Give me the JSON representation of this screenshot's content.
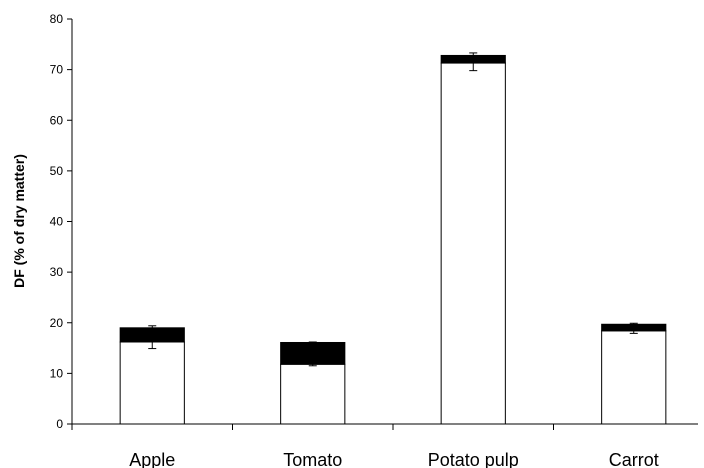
{
  "chart_data": {
    "type": "bar",
    "stacked": true,
    "title": "",
    "xlabel": "",
    "ylabel": "DF (% of dry matter)",
    "ylim": [
      0,
      80
    ],
    "yticks": [
      0,
      10,
      20,
      30,
      40,
      50,
      60,
      70,
      80
    ],
    "grid": false,
    "categories": [
      "Apple",
      "Tomato",
      "Potato pulp",
      "Carrot"
    ],
    "series": [
      {
        "values": [
          16.2,
          11.8,
          71.3,
          18.4
        ],
        "error": [
          1.3,
          0.3,
          1.5,
          0.5
        ],
        "color": "#ffffff"
      },
      {
        "values": [
          2.8,
          4.3,
          1.5,
          1.3
        ],
        "error": [
          0.4,
          0.1,
          0.5,
          0.2
        ],
        "color": "#000000"
      }
    ]
  }
}
